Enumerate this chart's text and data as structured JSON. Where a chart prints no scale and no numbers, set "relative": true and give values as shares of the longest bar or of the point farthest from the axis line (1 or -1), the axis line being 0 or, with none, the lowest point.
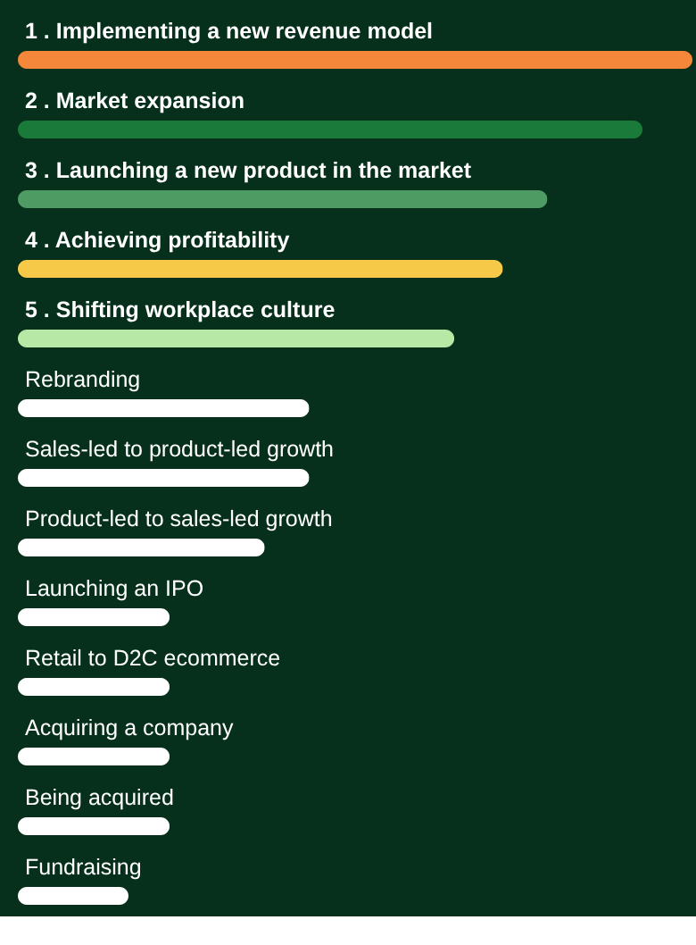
{
  "chart_data": {
    "type": "bar",
    "orientation": "horizontal",
    "relative": true,
    "categories": [
      "1 .  Implementing a new revenue model",
      "2 .  Market expansion",
      "3 .  Launching a new product in the market",
      "4 .  Achieving profitability",
      "5 .  Shifting workplace culture",
      "Rebranding",
      "Sales-led to product-led growth",
      "Product-led to sales-led growth",
      "Launching an IPO",
      "Retail to D2C ecommerce",
      "Acquiring a company",
      "Being acquired",
      "Fundraising"
    ],
    "values": [
      1,
      0.926,
      0.785,
      0.719,
      0.647,
      0.432,
      0.432,
      0.366,
      0.225,
      0.225,
      0.225,
      0.225,
      0.164
    ],
    "colors": [
      "#f5873a",
      "#1a7a3a",
      "#4e9c63",
      "#f7c948",
      "#b8e8a6",
      "#ffffff",
      "#ffffff",
      "#ffffff",
      "#ffffff",
      "#ffffff",
      "#ffffff",
      "#ffffff",
      "#ffffff"
    ]
  }
}
